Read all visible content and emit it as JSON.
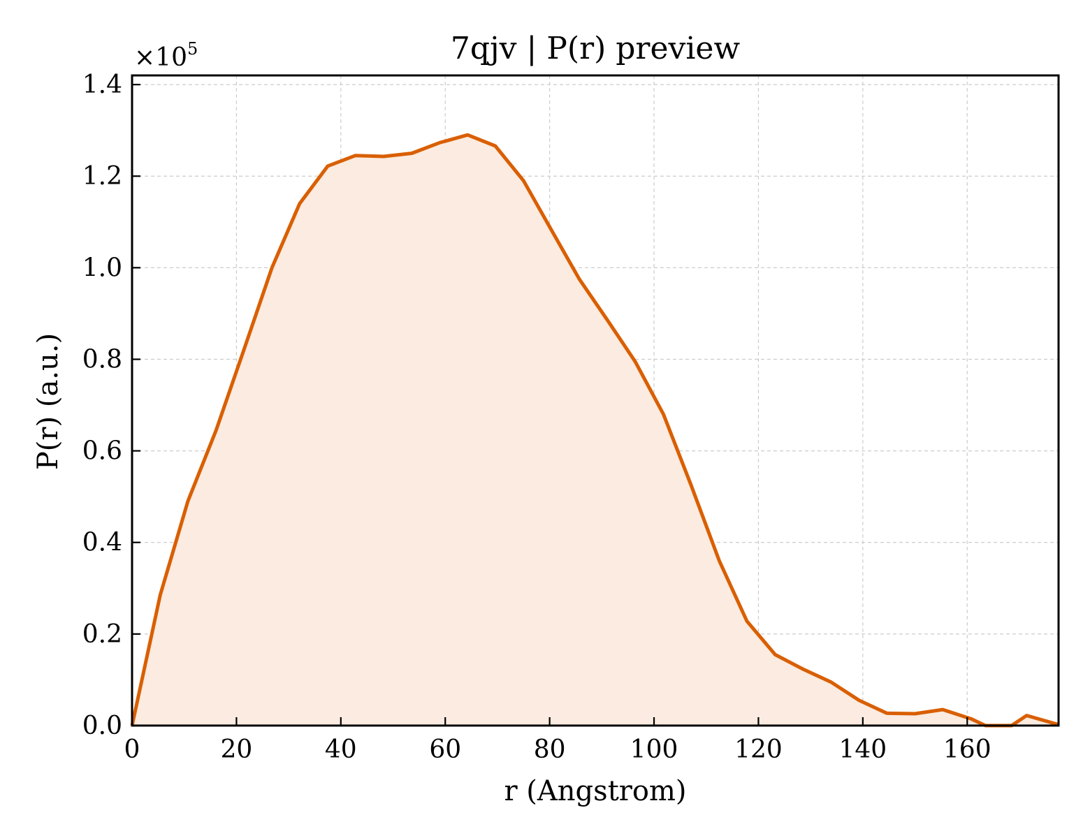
{
  "chart_data": {
    "type": "area",
    "title": "7qjv | P(r) preview",
    "xlabel": "r (Angstrom)",
    "ylabel": "P(r) (a.u.)",
    "y_multiplier_base": "×10",
    "y_multiplier_exp": "5",
    "xlim": [
      0,
      177.5
    ],
    "ylim": [
      0,
      1.42
    ],
    "grid": true,
    "line_color": "#d95f02",
    "fill_color": "#fbebe0",
    "x_ticks": [
      {
        "value": 0,
        "label": "0"
      },
      {
        "value": 20,
        "label": "20"
      },
      {
        "value": 40,
        "label": "40"
      },
      {
        "value": 60,
        "label": "60"
      },
      {
        "value": 80,
        "label": "80"
      },
      {
        "value": 100,
        "label": "100"
      },
      {
        "value": 120,
        "label": "120"
      },
      {
        "value": 140,
        "label": "140"
      },
      {
        "value": 160,
        "label": "160"
      }
    ],
    "y_ticks": [
      {
        "value": 0.0,
        "label": "0.0"
      },
      {
        "value": 0.2,
        "label": "0.2"
      },
      {
        "value": 0.4,
        "label": "0.4"
      },
      {
        "value": 0.6,
        "label": "0.6"
      },
      {
        "value": 0.8,
        "label": "0.8"
      },
      {
        "value": 1.0,
        "label": "1.0"
      },
      {
        "value": 1.2,
        "label": "1.2"
      },
      {
        "value": 1.4,
        "label": "1.4"
      }
    ],
    "x": [
      0,
      5.4,
      10.7,
      16.1,
      21.4,
      26.8,
      32.1,
      37.5,
      42.8,
      48.2,
      53.6,
      58.9,
      64.3,
      69.6,
      75.0,
      80.3,
      85.7,
      91.1,
      96.4,
      101.8,
      107.1,
      112.5,
      117.8,
      123.2,
      128.6,
      133.9,
      139.3,
      144.6,
      150.0,
      155.3,
      160.7,
      163.5,
      166.0,
      168.5,
      171.4,
      177.5
    ],
    "y": [
      0.0,
      0.285,
      0.49,
      0.645,
      0.82,
      1.0,
      1.14,
      1.222,
      1.245,
      1.243,
      1.25,
      1.273,
      1.29,
      1.266,
      1.19,
      1.083,
      0.975,
      0.885,
      0.795,
      0.68,
      0.525,
      0.36,
      0.228,
      0.155,
      0.123,
      0.095,
      0.055,
      0.027,
      0.026,
      0.035,
      0.015,
      0.0,
      0.0,
      0.0,
      0.022,
      0.002
    ]
  }
}
